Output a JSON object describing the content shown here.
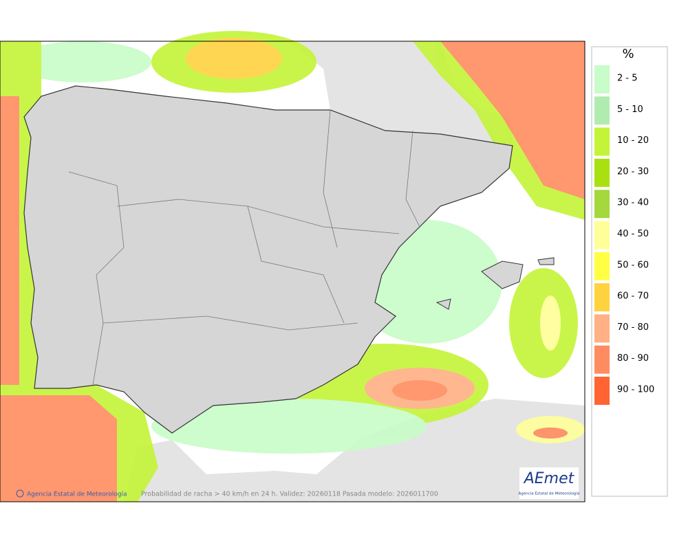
{
  "legend": {
    "title": "%",
    "items": [
      {
        "label": "2 - 5",
        "color": "#c8fcc8"
      },
      {
        "label": "5 - 10",
        "color": "#b0ecb0"
      },
      {
        "label": "10 - 20",
        "color": "#c4f438"
      },
      {
        "label": "20 - 30",
        "color": "#a8e010"
      },
      {
        "label": "30 - 40",
        "color": "#a4d83c"
      },
      {
        "label": "40 - 50",
        "color": "#ffff99"
      },
      {
        "label": "50 - 60",
        "color": "#ffff44"
      },
      {
        "label": "60 - 70",
        "color": "#ffd240"
      },
      {
        "label": "70 - 80",
        "color": "#ffb084"
      },
      {
        "label": "80 - 90",
        "color": "#ff8c60"
      },
      {
        "label": "90 - 100",
        "color": "#ff6432"
      }
    ]
  },
  "footer": {
    "credit": "Agencia Estatal de Meteorología",
    "caption": "Probabilidad de racha > 40 km/h en 24 h. Validez: 20260118 Pasada modelo: 2026011700"
  },
  "logo": {
    "name": "AEmet",
    "subtitle": "Agencia Estatal de Meteorología"
  }
}
